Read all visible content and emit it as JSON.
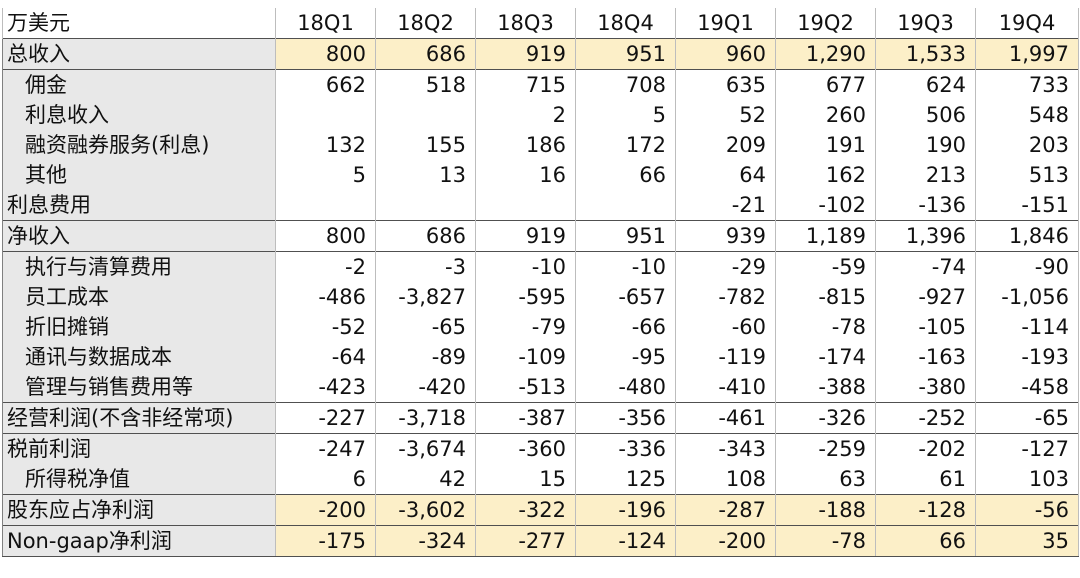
{
  "header": {
    "unit_label": "万美元",
    "quarters": [
      "18Q1",
      "18Q2",
      "18Q3",
      "18Q4",
      "19Q1",
      "19Q2",
      "19Q3",
      "19Q4"
    ]
  },
  "rows": [
    {
      "label": "总收入",
      "indent": false,
      "highlight": true,
      "top_border": true,
      "values": [
        "800",
        "686",
        "919",
        "951",
        "960",
        "1,290",
        "1,533",
        "1,997"
      ]
    },
    {
      "label": "佣金",
      "indent": true,
      "highlight": false,
      "top_border": true,
      "values": [
        "662",
        "518",
        "715",
        "708",
        "635",
        "677",
        "624",
        "733"
      ]
    },
    {
      "label": "利息收入",
      "indent": true,
      "highlight": false,
      "top_border": false,
      "values": [
        "",
        "",
        "2",
        "5",
        "52",
        "260",
        "506",
        "548"
      ]
    },
    {
      "label": "融资融券服务(利息)",
      "indent": true,
      "highlight": false,
      "top_border": false,
      "values": [
        "132",
        "155",
        "186",
        "172",
        "209",
        "191",
        "190",
        "203"
      ]
    },
    {
      "label": "其他",
      "indent": true,
      "highlight": false,
      "top_border": false,
      "values": [
        "5",
        "13",
        "16",
        "66",
        "64",
        "162",
        "213",
        "513"
      ]
    },
    {
      "label": "利息费用",
      "indent": false,
      "highlight": false,
      "top_border": false,
      "values": [
        "",
        "",
        "",
        "",
        "-21",
        "-102",
        "-136",
        "-151"
      ]
    },
    {
      "label": "净收入",
      "indent": false,
      "highlight": false,
      "top_border": true,
      "values": [
        "800",
        "686",
        "919",
        "951",
        "939",
        "1,189",
        "1,396",
        "1,846"
      ]
    },
    {
      "label": "执行与清算费用",
      "indent": true,
      "highlight": false,
      "top_border": true,
      "values": [
        "-2",
        "-3",
        "-10",
        "-10",
        "-29",
        "-59",
        "-74",
        "-90"
      ]
    },
    {
      "label": "员工成本",
      "indent": true,
      "highlight": false,
      "top_border": false,
      "values": [
        "-486",
        "-3,827",
        "-595",
        "-657",
        "-782",
        "-815",
        "-927",
        "-1,056"
      ]
    },
    {
      "label": "折旧摊销",
      "indent": true,
      "highlight": false,
      "top_border": false,
      "values": [
        "-52",
        "-65",
        "-79",
        "-66",
        "-60",
        "-78",
        "-105",
        "-114"
      ]
    },
    {
      "label": "通讯与数据成本",
      "indent": true,
      "highlight": false,
      "top_border": false,
      "values": [
        "-64",
        "-89",
        "-109",
        "-95",
        "-119",
        "-174",
        "-163",
        "-193"
      ]
    },
    {
      "label": "管理与销售费用等",
      "indent": true,
      "highlight": false,
      "top_border": false,
      "values": [
        "-423",
        "-420",
        "-513",
        "-480",
        "-410",
        "-388",
        "-380",
        "-458"
      ]
    },
    {
      "label": "经营利润(不含非经常项)",
      "indent": false,
      "highlight": false,
      "top_border": true,
      "values": [
        "-227",
        "-3,718",
        "-387",
        "-356",
        "-461",
        "-326",
        "-252",
        "-65"
      ]
    },
    {
      "label": "税前利润",
      "indent": false,
      "highlight": false,
      "top_border": true,
      "values": [
        "-247",
        "-3,674",
        "-360",
        "-336",
        "-343",
        "-259",
        "-202",
        "-127"
      ]
    },
    {
      "label": "所得税净值",
      "indent": true,
      "highlight": false,
      "top_border": false,
      "values": [
        "6",
        "42",
        "15",
        "125",
        "108",
        "63",
        "61",
        "103"
      ]
    },
    {
      "label": "股东应占净利润",
      "indent": false,
      "highlight": true,
      "top_border": true,
      "values": [
        "-200",
        "-3,602",
        "-322",
        "-196",
        "-287",
        "-188",
        "-128",
        "-56"
      ]
    },
    {
      "label": "Non-gaap净利润",
      "indent": false,
      "highlight": true,
      "top_border": true,
      "values": [
        "-175",
        "-324",
        "-277",
        "-124",
        "-200",
        "-78",
        "66",
        "35"
      ]
    }
  ]
}
